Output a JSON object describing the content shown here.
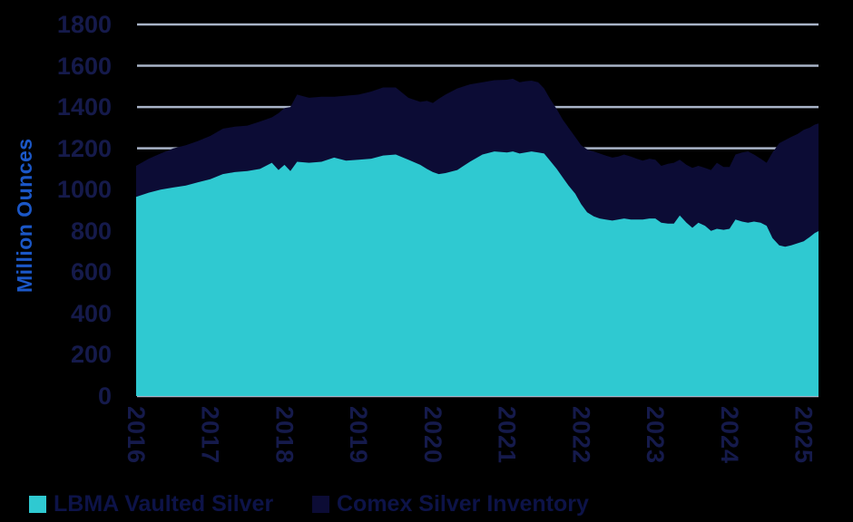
{
  "page": {
    "background": "#000000",
    "plot_background": "#000000"
  },
  "colors": {
    "lbma_area": "#2fc9d1",
    "comex_area": "#0c0c35",
    "gridline": "#a9b4c8",
    "tick_label": "#151a4b",
    "axis_title": "#1b57c7",
    "legend_text": "#0d1348"
  },
  "chart_data": {
    "type": "area",
    "stacked": true,
    "title": "",
    "xlabel": "",
    "ylabel": "Million Ounces",
    "ylim": [
      0,
      1800
    ],
    "xlim": [
      2016,
      2025.2
    ],
    "yticks": [
      0,
      200,
      400,
      600,
      800,
      1000,
      1200,
      1400,
      1600,
      1800
    ],
    "xticks": [
      2016,
      2017,
      2018,
      2019,
      2020,
      2021,
      2022,
      2023,
      2024,
      2025
    ],
    "grid": "horizontal",
    "legend_position": "bottom-left",
    "x": [
      2016.0,
      2016.17,
      2016.33,
      2016.5,
      2016.67,
      2016.83,
      2017.0,
      2017.17,
      2017.33,
      2017.5,
      2017.67,
      2017.83,
      2017.92,
      2018.0,
      2018.08,
      2018.17,
      2018.33,
      2018.5,
      2018.67,
      2018.83,
      2019.0,
      2019.17,
      2019.33,
      2019.5,
      2019.67,
      2019.83,
      2019.92,
      2020.0,
      2020.08,
      2020.17,
      2020.33,
      2020.5,
      2020.67,
      2020.83,
      2021.0,
      2021.08,
      2021.17,
      2021.25,
      2021.33,
      2021.42,
      2021.5,
      2021.58,
      2021.67,
      2021.75,
      2021.83,
      2021.92,
      2022.0,
      2022.08,
      2022.17,
      2022.25,
      2022.33,
      2022.42,
      2022.5,
      2022.58,
      2022.67,
      2022.75,
      2022.83,
      2022.92,
      2023.0,
      2023.08,
      2023.17,
      2023.25,
      2023.33,
      2023.42,
      2023.5,
      2023.58,
      2023.67,
      2023.75,
      2023.83,
      2023.92,
      2024.0,
      2024.08,
      2024.17,
      2024.25,
      2024.33,
      2024.42,
      2024.5,
      2024.58,
      2024.67,
      2024.75,
      2024.83,
      2024.92,
      2025.0,
      2025.08,
      2025.15,
      2025.2
    ],
    "series": [
      {
        "name": "LBMA Vaulted Silver",
        "color": "#2fc9d1",
        "values": [
          965,
          985,
          1000,
          1010,
          1020,
          1035,
          1050,
          1075,
          1085,
          1090,
          1100,
          1130,
          1095,
          1120,
          1090,
          1135,
          1130,
          1135,
          1155,
          1140,
          1145,
          1150,
          1165,
          1170,
          1145,
          1120,
          1100,
          1085,
          1075,
          1080,
          1095,
          1135,
          1170,
          1185,
          1180,
          1185,
          1175,
          1180,
          1185,
          1180,
          1175,
          1140,
          1100,
          1060,
          1020,
          980,
          930,
          890,
          870,
          860,
          855,
          850,
          855,
          860,
          855,
          855,
          855,
          860,
          860,
          840,
          835,
          835,
          875,
          840,
          815,
          840,
          825,
          800,
          810,
          805,
          810,
          855,
          845,
          840,
          845,
          840,
          825,
          765,
          730,
          723,
          730,
          740,
          750,
          770,
          790,
          799
        ]
      },
      {
        "name": "Comex Silver Inventory",
        "color": "#0c0c35",
        "values": [
          150,
          165,
          175,
          190,
          195,
          200,
          210,
          220,
          220,
          220,
          230,
          220,
          275,
          275,
          310,
          325,
          315,
          315,
          295,
          315,
          315,
          325,
          330,
          325,
          300,
          305,
          330,
          335,
          365,
          380,
          395,
          375,
          350,
          345,
          352,
          352,
          345,
          345,
          343,
          340,
          315,
          300,
          290,
          280,
          280,
          275,
          285,
          305,
          315,
          315,
          310,
          305,
          305,
          310,
          305,
          295,
          285,
          290,
          285,
          275,
          290,
          295,
          270,
          280,
          290,
          275,
          280,
          295,
          320,
          305,
          300,
          315,
          335,
          345,
          325,
          310,
          305,
          415,
          495,
          517,
          525,
          530,
          540,
          530,
          525,
          521
        ]
      }
    ]
  }
}
